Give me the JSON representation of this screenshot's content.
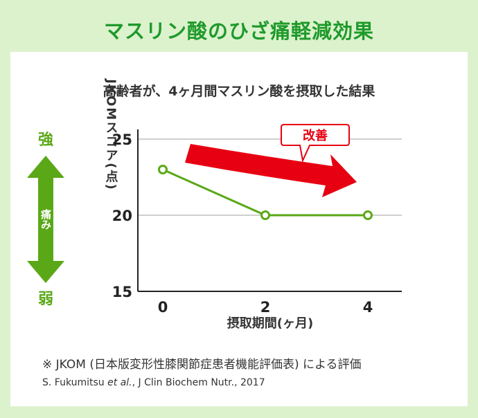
{
  "title": "マスリン酸のひざ痛軽減効果",
  "subtitle": "高齢者が、4ヶ月間マスリン酸を摂取した結果",
  "scale": {
    "top_label": "強",
    "bottom_label": "弱",
    "arrow_label": "痛み"
  },
  "annotation": {
    "label": "改善"
  },
  "colors": {
    "title_green": "#1f9a2b",
    "line_green": "#5aa817",
    "arrow_red": "#e60012",
    "background_green": "#dcf2cd"
  },
  "footnote": "※ JKOM (日本版変形性膝関節症患者機能評価表) による評価",
  "citation": {
    "authors": "S. Fukumitsu",
    "etal": "et al.",
    "journal": ", J Clin Biochem Nutr., 2017"
  },
  "chart_data": {
    "type": "line",
    "x": [
      0,
      2,
      4
    ],
    "series": [
      {
        "values": [
          23,
          20,
          20
        ]
      }
    ],
    "xlabel": "摂取期間(ヶ月)",
    "ylabel": "JKOMスコア(点)",
    "xticks": [
      "0",
      "2",
      "4"
    ],
    "yticks": [
      "15",
      "20",
      "25"
    ],
    "xlim": [
      0,
      4
    ],
    "ylim": [
      15,
      25
    ],
    "grid": true
  }
}
